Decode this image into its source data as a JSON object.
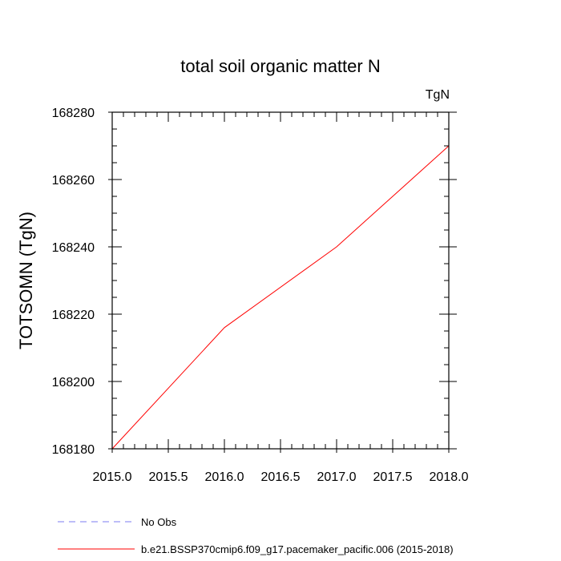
{
  "chart_data": {
    "type": "line",
    "title": "total soil organic matter N",
    "units_label": "TgN",
    "xlabel": "",
    "ylabel": "TOTSOMN  (TgN)",
    "xlim": [
      2015.0,
      2018.0
    ],
    "ylim": [
      168180,
      168280
    ],
    "x_ticks": [
      "2015.0",
      "2015.5",
      "2016.0",
      "2016.5",
      "2017.0",
      "2017.5",
      "2018.0"
    ],
    "y_ticks": [
      "168180",
      "168200",
      "168220",
      "168240",
      "168260",
      "168280"
    ],
    "grid": false,
    "legend_placement": "bottom",
    "series": [
      {
        "name": "No Obs",
        "color": "#7b7bf0",
        "style": "dashed",
        "x": [],
        "y": []
      },
      {
        "name": "b.e21.BSSP370cmip6.f09_g17.pacemaker_pacific.006 (2015-2018)",
        "color": "#ff0000",
        "style": "solid",
        "x": [
          2015.0,
          2016.0,
          2017.0,
          2018.0
        ],
        "y": [
          168180,
          168216,
          168240,
          168270
        ]
      }
    ]
  }
}
